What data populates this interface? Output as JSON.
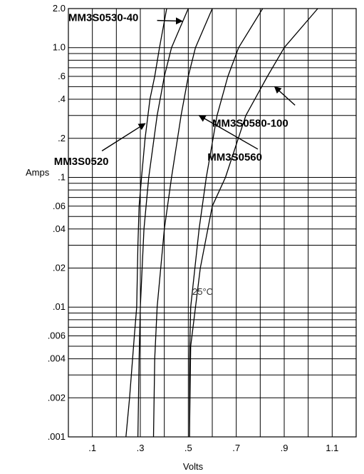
{
  "chart_data": {
    "type": "line",
    "xlabel": "Volts",
    "ylabel": "Amps",
    "annotation": "25°C",
    "xlim": [
      0.0,
      1.2
    ],
    "ylim": [
      0.001,
      2.0
    ],
    "y_scale": "log",
    "grid": true,
    "x_ticks": [
      {
        "value": 0.1,
        "label": ".1"
      },
      {
        "value": 0.3,
        "label": ".3"
      },
      {
        "value": 0.5,
        "label": ".5"
      },
      {
        "value": 0.7,
        "label": ".7"
      },
      {
        "value": 0.9,
        "label": ".9"
      },
      {
        "value": 1.1,
        "label": "1.1"
      }
    ],
    "y_ticks": [
      {
        "value": 2.0,
        "label": "2.0"
      },
      {
        "value": 1.0,
        "label": "1.0"
      },
      {
        "value": 0.6,
        "label": ".6"
      },
      {
        "value": 0.4,
        "label": ".4"
      },
      {
        "value": 0.2,
        "label": ".2"
      },
      {
        "value": 0.1,
        "label": ".1"
      },
      {
        "value": 0.06,
        "label": ".06"
      },
      {
        "value": 0.04,
        "label": ".04"
      },
      {
        "value": 0.02,
        "label": ".02"
      },
      {
        "value": 0.01,
        "label": ".01"
      },
      {
        "value": 0.006,
        "label": ".006"
      },
      {
        "value": 0.004,
        "label": ".004"
      },
      {
        "value": 0.002,
        "label": ".002"
      },
      {
        "value": 0.001,
        "label": ".001"
      }
    ],
    "series": [
      {
        "name": "MM3S0520",
        "points": [
          [
            0.24,
            0.001
          ],
          [
            0.255,
            0.002
          ],
          [
            0.275,
            0.006
          ],
          [
            0.285,
            0.01
          ],
          [
            0.29,
            0.03
          ],
          [
            0.295,
            0.06
          ],
          [
            0.305,
            0.1
          ],
          [
            0.32,
            0.2
          ],
          [
            0.34,
            0.4
          ],
          [
            0.36,
            0.6
          ],
          [
            0.38,
            1.0
          ],
          [
            0.41,
            2.0
          ]
        ]
      },
      {
        "name": "MM3S0530-40",
        "points": [
          [
            0.29,
            0.001
          ],
          [
            0.295,
            0.004
          ],
          [
            0.3,
            0.01
          ],
          [
            0.315,
            0.04
          ],
          [
            0.335,
            0.1
          ],
          [
            0.37,
            0.3
          ],
          [
            0.4,
            0.6
          ],
          [
            0.43,
            1.0
          ],
          [
            0.5,
            2.0
          ]
        ]
      },
      {
        "name": "MM3S0560",
        "points": [
          [
            0.355,
            0.001
          ],
          [
            0.36,
            0.004
          ],
          [
            0.37,
            0.01
          ],
          [
            0.4,
            0.04
          ],
          [
            0.43,
            0.1
          ],
          [
            0.47,
            0.3
          ],
          [
            0.5,
            0.6
          ],
          [
            0.53,
            1.0
          ],
          [
            0.6,
            2.0
          ]
        ]
      },
      {
        "name": "MM3S0560",
        "points": [
          [
            0.505,
            0.001
          ],
          [
            0.505,
            0.004
          ],
          [
            0.51,
            0.01
          ],
          [
            0.545,
            0.04
          ],
          [
            0.575,
            0.1
          ],
          [
            0.62,
            0.3
          ],
          [
            0.665,
            0.6
          ],
          [
            0.71,
            1.0
          ],
          [
            0.81,
            2.0
          ]
        ]
      },
      {
        "name": "MM3S0580-100",
        "points": [
          [
            0.505,
            0.001
          ],
          [
            0.51,
            0.005
          ],
          [
            0.55,
            0.02
          ],
          [
            0.6,
            0.06
          ],
          [
            0.655,
            0.1
          ],
          [
            0.74,
            0.3
          ],
          [
            0.83,
            0.6
          ],
          [
            0.9,
            1.0
          ],
          [
            1.04,
            2.0
          ]
        ]
      }
    ],
    "callouts": [
      {
        "label": "MM3S0530-40",
        "text_at": [
          0.0,
          1.6
        ],
        "arrow_from": [
          0.37,
          1.62
        ],
        "arrow_to": [
          0.475,
          1.6
        ]
      },
      {
        "label": "MM3S0580-100",
        "text_at": [
          0.6,
          0.245
        ],
        "arrow_from": [
          0.945,
          0.36
        ],
        "arrow_to": [
          0.86,
          0.5
        ]
      },
      {
        "label": "MM3S0520",
        "text_at": [
          -0.06,
          0.125
        ],
        "arrow_from": [
          0.14,
          0.16
        ],
        "arrow_to": [
          0.32,
          0.26
        ]
      },
      {
        "label": "MM3S0560",
        "text_at": [
          0.58,
          0.135
        ],
        "arrow_from": [
          0.79,
          0.165
        ],
        "arrow_to": [
          0.545,
          0.3
        ]
      }
    ]
  }
}
